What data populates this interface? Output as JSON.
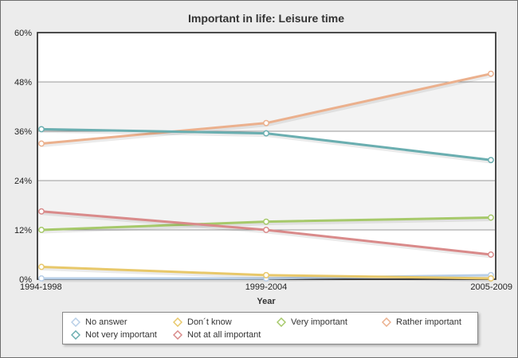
{
  "chart_data": {
    "type": "line",
    "title": "Important in life: Leisure time",
    "xlabel": "Year",
    "ylabel": "",
    "categories": [
      "1994-1998",
      "1999-2004",
      "2005-2009"
    ],
    "ylim": [
      0,
      60
    ],
    "yticks": [
      "0%",
      "12%",
      "24%",
      "36%",
      "48%",
      "60%"
    ],
    "ytick_values": [
      0,
      12,
      24,
      36,
      48,
      60
    ],
    "grid": true,
    "legend_position": "bottom",
    "series": [
      {
        "name": "No answer",
        "color": "#b8cfe8",
        "values": [
          0.2,
          0.2,
          1.0
        ]
      },
      {
        "name": "Don´t know",
        "color": "#e8c86a",
        "values": [
          3.0,
          1.0,
          0.2
        ]
      },
      {
        "name": "Very important",
        "color": "#a6c96a",
        "values": [
          12.0,
          14.0,
          15.0
        ]
      },
      {
        "name": "Rather important",
        "color": "#ebb08d",
        "values": [
          33.0,
          38.0,
          50.0
        ]
      },
      {
        "name": "Not very important",
        "color": "#6aaeb0",
        "values": [
          36.5,
          35.5,
          29.0
        ]
      },
      {
        "name": "Not at all important",
        "color": "#d98a8a",
        "values": [
          16.5,
          12.0,
          6.0
        ]
      }
    ]
  }
}
